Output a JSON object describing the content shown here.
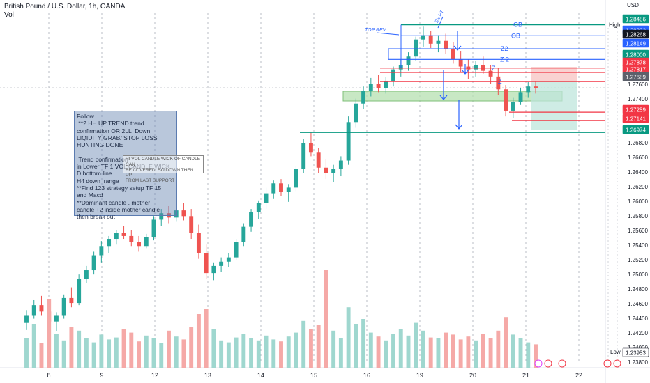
{
  "header": {
    "symbol_title": "British Pound / U.S. Dollar, 1h, OANDA",
    "volume_label": "Vol"
  },
  "axis": {
    "currency": "USD",
    "price_ticks": [
      "1.27600",
      "1.27400",
      "1.27200",
      "1.26800",
      "1.26600",
      "1.26400",
      "1.26200",
      "1.26000",
      "1.25800",
      "1.25600",
      "1.25400",
      "1.25200",
      "1.25000",
      "1.24800",
      "1.24600",
      "1.24400",
      "1.24200",
      "1.24000",
      "1.23800"
    ],
    "date_ticks": [
      "8",
      "9",
      "12",
      "13",
      "14",
      "15",
      "16",
      "19",
      "20",
      "21",
      "22"
    ]
  },
  "price_tags": [
    {
      "label": "1.28486",
      "color": "#089981",
      "text_color": "#ffffff"
    },
    {
      "label": "1.28332",
      "color": "#2962ff",
      "text_color": "#ffffff"
    },
    {
      "label": "1.28268",
      "color": "#131722",
      "text_color": "#ffffff"
    },
    {
      "label": "1.28149",
      "color": "#2962ff",
      "text_color": "#ffffff"
    },
    {
      "label": "1.28000",
      "color": "#089981",
      "text_color": "#ffffff"
    },
    {
      "label": "1.27878",
      "color": "#f23645",
      "text_color": "#ffffff"
    },
    {
      "label": "1.27817",
      "color": "#f23645",
      "text_color": "#ffffff"
    },
    {
      "label": "1.27689",
      "color": "#5d606b",
      "text_color": "#ffffff"
    },
    {
      "label": "1.27259",
      "color": "#f23645",
      "text_color": "#ffffff"
    },
    {
      "label": "1.27141",
      "color": "#f23645",
      "text_color": "#ffffff"
    },
    {
      "label": "1.26974",
      "color": "#089981",
      "text_color": "#ffffff"
    },
    {
      "label": "1.23953",
      "color": "#ffffff",
      "text_color": "#131722"
    }
  ],
  "level_labels": {
    "high": "High",
    "low": "Low",
    "ob1": "OB",
    "ob2": "OB",
    "z2a": "Z2",
    "z2b": "Z 2",
    "z1a": "Z",
    "z1b": "Z",
    "top_rev": "TOP REV",
    "ss_pt": "SS PT"
  },
  "notes": {
    "main": "Follow\n **2 HH UP TREND trend\nconfirmation OR 2LL  Down\nLIQIDITY GRAB/ STOP LOSS\nHUNTING DONE\n\n Trend confirmation\nin Lower TF 1 VOL CANDLE WICK\nD bottom line\nH4 down  range\n**Find 123 strategy setup TF 15\nand Macd\n**Dominant candle , mother\ncandle +2 inside mother candle\nthen break out",
    "secondary": "HI VOL CANDLE WICK OF CANDLE CAN\nBE COVERED  SO DOWN THEN UP\nFROM LAST SUPPORT"
  },
  "colors": {
    "up": "#26a69a",
    "down": "#ef5350",
    "vol_up": "#9fd7cf",
    "vol_down": "#f5a9a7",
    "blue": "#2962ff",
    "red": "#f23645",
    "green": "#089981",
    "zone_green": "#b6e0b0"
  },
  "chart_data": {
    "type": "candlestick",
    "title": "British Pound / U.S. Dollar, 1h, OANDA",
    "y_range": [
      1.2373,
      1.2858
    ],
    "volume_range": [
      0,
      1
    ],
    "candles_ohlc": [
      [
        1.243,
        1.2448,
        1.242,
        1.244
      ],
      [
        1.244,
        1.2462,
        1.2436,
        1.2455
      ],
      [
        1.2455,
        1.2468,
        1.244,
        1.2446
      ],
      [
        1.2446,
        1.2452,
        1.2425,
        1.2432
      ],
      [
        1.2432,
        1.2445,
        1.2418,
        1.244
      ],
      [
        1.244,
        1.247,
        1.2436,
        1.2465
      ],
      [
        1.2465,
        1.248,
        1.2452,
        1.2458
      ],
      [
        1.2458,
        1.2498,
        1.2455,
        1.2492
      ],
      [
        1.2492,
        1.251,
        1.2486,
        1.2504
      ],
      [
        1.2504,
        1.253,
        1.2498,
        1.2525
      ],
      [
        1.2525,
        1.2545,
        1.2515,
        1.2538
      ],
      [
        1.2538,
        1.2552,
        1.2528,
        1.2548
      ],
      [
        1.2548,
        1.256,
        1.254,
        1.2556
      ],
      [
        1.2556,
        1.2566,
        1.2548,
        1.2552
      ],
      [
        1.2552,
        1.256,
        1.2538,
        1.2544
      ],
      [
        1.2544,
        1.2552,
        1.253,
        1.2538
      ],
      [
        1.2538,
        1.2555,
        1.2535,
        1.255
      ],
      [
        1.255,
        1.258,
        1.2546,
        1.2575
      ],
      [
        1.2575,
        1.259,
        1.2566,
        1.2584
      ],
      [
        1.2584,
        1.2594,
        1.257,
        1.2578
      ],
      [
        1.2578,
        1.2592,
        1.2572,
        1.2588
      ],
      [
        1.2588,
        1.2598,
        1.2574,
        1.258
      ],
      [
        1.258,
        1.259,
        1.2548,
        1.2556
      ],
      [
        1.2556,
        1.2568,
        1.252,
        1.2528
      ],
      [
        1.2528,
        1.254,
        1.2492,
        1.25
      ],
      [
        1.25,
        1.2515,
        1.249,
        1.251
      ],
      [
        1.251,
        1.2522,
        1.2502,
        1.2516
      ],
      [
        1.2516,
        1.2528,
        1.2508,
        1.2522
      ],
      [
        1.2522,
        1.2548,
        1.2518,
        1.2544
      ],
      [
        1.2544,
        1.257,
        1.2538,
        1.2565
      ],
      [
        1.2565,
        1.259,
        1.2558,
        1.2586
      ],
      [
        1.2586,
        1.2602,
        1.2576,
        1.2598
      ],
      [
        1.2598,
        1.262,
        1.259,
        1.2612
      ],
      [
        1.2612,
        1.263,
        1.2604,
        1.2626
      ],
      [
        1.2626,
        1.2632,
        1.2608,
        1.2614
      ],
      [
        1.2614,
        1.2625,
        1.26,
        1.262
      ],
      [
        1.262,
        1.265,
        1.2615,
        1.2646
      ],
      [
        1.2646,
        1.2688,
        1.264,
        1.2682
      ],
      [
        1.2682,
        1.2698,
        1.2664,
        1.267
      ],
      [
        1.267,
        1.2676,
        1.264,
        1.2648
      ],
      [
        1.2648,
        1.266,
        1.2632,
        1.264
      ],
      [
        1.264,
        1.2652,
        1.2628,
        1.2646
      ],
      [
        1.2646,
        1.2664,
        1.2636,
        1.2658
      ],
      [
        1.2658,
        1.272,
        1.2652,
        1.2712
      ],
      [
        1.2712,
        1.2745,
        1.2704,
        1.2738
      ],
      [
        1.2738,
        1.2762,
        1.273,
        1.2756
      ],
      [
        1.2756,
        1.2774,
        1.2748,
        1.2766
      ],
      [
        1.2766,
        1.2778,
        1.2754,
        1.276
      ],
      [
        1.276,
        1.2775,
        1.2752,
        1.277
      ],
      [
        1.277,
        1.279,
        1.2762,
        1.2786
      ],
      [
        1.2786,
        1.28,
        1.2776,
        1.2792
      ],
      [
        1.2792,
        1.281,
        1.2784,
        1.2804
      ],
      [
        1.2804,
        1.2832,
        1.2798,
        1.2828
      ],
      [
        1.2828,
        1.2846,
        1.2818,
        1.2834
      ],
      [
        1.2834,
        1.284,
        1.2816,
        1.2822
      ],
      [
        1.2822,
        1.2834,
        1.281,
        1.2826
      ],
      [
        1.2826,
        1.2836,
        1.2808,
        1.2814
      ],
      [
        1.2814,
        1.2824,
        1.2794,
        1.28
      ],
      [
        1.28,
        1.2812,
        1.2782,
        1.279
      ],
      [
        1.279,
        1.28,
        1.2772,
        1.2786
      ],
      [
        1.2786,
        1.2798,
        1.2776,
        1.2792
      ],
      [
        1.2792,
        1.2804,
        1.278,
        1.2784
      ],
      [
        1.2784,
        1.2792,
        1.2766,
        1.2776
      ],
      [
        1.2776,
        1.2788,
        1.275,
        1.2758
      ],
      [
        1.2758,
        1.2764,
        1.272,
        1.2728
      ],
      [
        1.2728,
        1.2746,
        1.2718,
        1.274
      ],
      [
        1.274,
        1.276,
        1.2736,
        1.2754
      ],
      [
        1.2754,
        1.2768,
        1.2746,
        1.2762
      ],
      [
        1.2762,
        1.277,
        1.2752,
        1.276
      ]
    ],
    "volumes": [
      0.3,
      0.45,
      0.25,
      0.7,
      0.35,
      0.28,
      0.42,
      0.38,
      0.3,
      0.26,
      0.34,
      0.29,
      0.31,
      0.4,
      0.36,
      0.27,
      0.33,
      0.3,
      0.25,
      0.38,
      0.32,
      0.29,
      0.42,
      0.55,
      0.6,
      0.4,
      0.28,
      0.26,
      0.31,
      0.35,
      0.3,
      0.28,
      0.33,
      0.29,
      0.27,
      0.32,
      0.36,
      0.48,
      0.4,
      0.44,
      1.0,
      0.38,
      0.3,
      0.62,
      0.45,
      0.5,
      0.36,
      0.32,
      0.28,
      0.35,
      0.4,
      0.33,
      0.46,
      0.38,
      0.31,
      0.3,
      0.36,
      0.34,
      0.29,
      0.32,
      0.28,
      0.35,
      0.3,
      0.38,
      0.52,
      0.34,
      0.3,
      0.26,
      0.24
    ],
    "levels": [
      1.28486,
      1.28332,
      1.28149,
      1.28,
      1.27878,
      1.27817,
      1.27689,
      1.27259,
      1.27141,
      1.26974
    ]
  }
}
